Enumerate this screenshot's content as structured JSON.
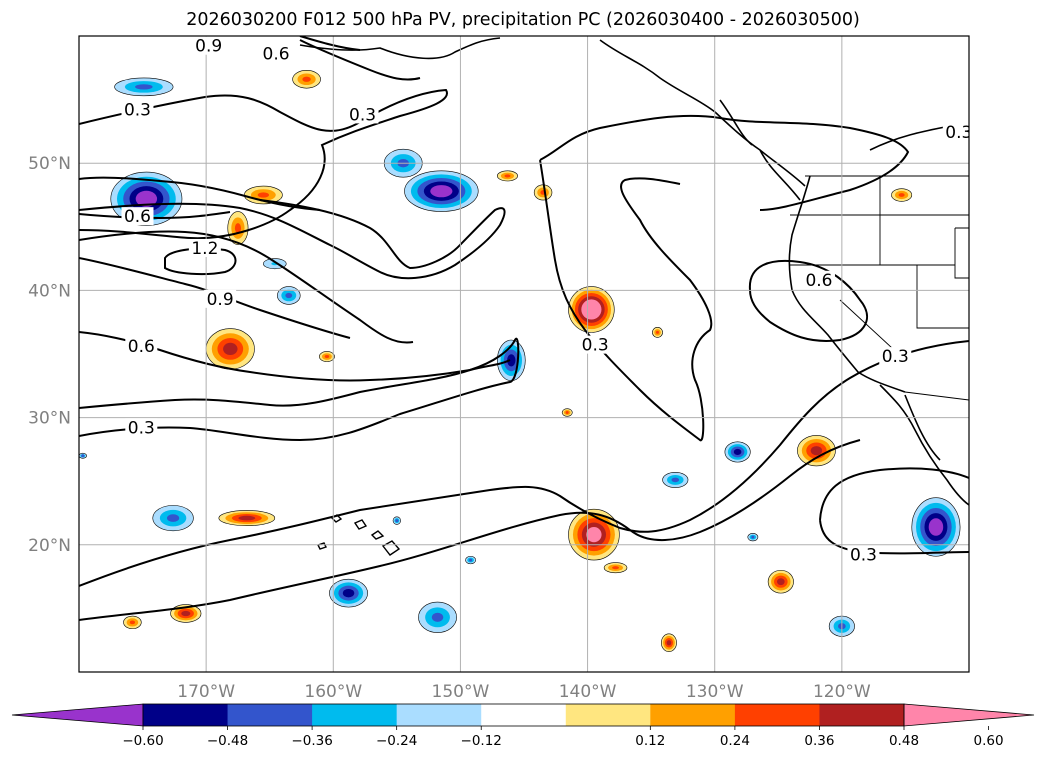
{
  "chart_data": {
    "type": "contour-map",
    "title": "2026030200 F012 500 hPa PV, precipitation PC (2026030400 - 2026030500)",
    "lon_range": [
      -180,
      -110
    ],
    "lat_range": [
      10,
      60
    ],
    "lon_ticks": [
      -170,
      -160,
      -150,
      -140,
      -130,
      -120
    ],
    "lon_tick_labels": [
      "170°W",
      "160°W",
      "150°W",
      "140°W",
      "130°W",
      "120°W"
    ],
    "lat_ticks": [
      20,
      30,
      40,
      50
    ],
    "lat_tick_labels": [
      "20°N",
      "30°N",
      "40°N",
      "50°N"
    ],
    "grid": true,
    "pv_contour_levels": [
      0.3,
      0.6,
      0.9,
      1.2
    ],
    "pv_contour_labels": [
      {
        "text": "0.9",
        "lon": -169.8,
        "lat": 59.0
      },
      {
        "text": "0.6",
        "lon": -164.5,
        "lat": 58.4
      },
      {
        "text": "0.3",
        "lon": -175.4,
        "lat": 54.0
      },
      {
        "text": "0.3",
        "lon": -157.7,
        "lat": 53.6
      },
      {
        "text": "0.6",
        "lon": -175.4,
        "lat": 45.6
      },
      {
        "text": "1.2",
        "lon": -170.1,
        "lat": 43.1
      },
      {
        "text": "0.9",
        "lon": -168.9,
        "lat": 39.1
      },
      {
        "text": "0.6",
        "lon": -175.1,
        "lat": 35.4
      },
      {
        "text": "0.3",
        "lon": -175.1,
        "lat": 29.0
      },
      {
        "text": "0.3",
        "lon": -139.4,
        "lat": 35.5
      },
      {
        "text": "0.6",
        "lon": -121.8,
        "lat": 40.6
      },
      {
        "text": "0.3",
        "lon": -115.8,
        "lat": 34.6
      },
      {
        "text": "0.3",
        "lon": -118.3,
        "lat": 19.0
      },
      {
        "text": "0.3",
        "lon": -110.8,
        "lat": 52.2
      }
    ],
    "colorbar": {
      "ticks": [
        -0.6,
        -0.48,
        -0.36,
        -0.24,
        -0.12,
        0.12,
        0.24,
        0.36,
        0.48,
        0.6
      ],
      "tick_labels": [
        "−0.60",
        "−0.48",
        "−0.36",
        "−0.24",
        "−0.12",
        "0.12",
        "0.24",
        "0.36",
        "0.48",
        "0.60"
      ],
      "colors": [
        "#9933cc",
        "#000088",
        "#3355cc",
        "#00bbee",
        "#aaddff",
        "#ffffff",
        "#ffe680",
        "#ffa000",
        "#ff4000",
        "#b02020",
        "#ff85aa"
      ],
      "extend": "both"
    },
    "precip_features": [
      {
        "kind": "neg",
        "lon": -174.9,
        "lat": 56.0,
        "rx": 2.3,
        "ry": 0.7,
        "level": 2
      },
      {
        "kind": "pos",
        "lon": -162.1,
        "lat": 56.6,
        "rx": 1.1,
        "ry": 0.7,
        "level": 2
      },
      {
        "kind": "neg",
        "lon": -174.7,
        "lat": 47.2,
        "rx": 2.8,
        "ry": 2.1,
        "level": 4
      },
      {
        "kind": "pos",
        "lon": -165.5,
        "lat": 47.5,
        "rx": 1.5,
        "ry": 0.7,
        "level": 2
      },
      {
        "kind": "pos",
        "lon": -167.5,
        "lat": 44.9,
        "rx": 0.8,
        "ry": 1.3,
        "level": 2
      },
      {
        "kind": "neg",
        "lon": -154.5,
        "lat": 50.0,
        "rx": 1.5,
        "ry": 1.1,
        "level": 2
      },
      {
        "kind": "neg",
        "lon": -151.5,
        "lat": 47.8,
        "rx": 2.9,
        "ry": 1.6,
        "level": 4
      },
      {
        "kind": "pos",
        "lon": -146.3,
        "lat": 49.0,
        "rx": 0.8,
        "ry": 0.4,
        "level": 2
      },
      {
        "kind": "pos",
        "lon": -143.5,
        "lat": 47.7,
        "rx": 0.7,
        "ry": 0.6,
        "level": 2
      },
      {
        "kind": "neg",
        "lon": -164.6,
        "lat": 42.1,
        "rx": 0.9,
        "ry": 0.4,
        "level": 1
      },
      {
        "kind": "neg",
        "lon": -163.5,
        "lat": 39.6,
        "rx": 0.9,
        "ry": 0.7,
        "level": 2
      },
      {
        "kind": "pos",
        "lon": -168.1,
        "lat": 35.4,
        "rx": 1.9,
        "ry": 1.6,
        "level": 3
      },
      {
        "kind": "pos",
        "lon": -160.5,
        "lat": 34.8,
        "rx": 0.6,
        "ry": 0.4,
        "level": 2
      },
      {
        "kind": "neg",
        "lon": -146.0,
        "lat": 34.5,
        "rx": 1.1,
        "ry": 1.6,
        "level": 3
      },
      {
        "kind": "pos",
        "lon": -139.7,
        "lat": 38.5,
        "rx": 1.8,
        "ry": 1.8,
        "level": 5
      },
      {
        "kind": "pos",
        "lon": -134.5,
        "lat": 36.7,
        "rx": 0.4,
        "ry": 0.4,
        "level": 2
      },
      {
        "kind": "pos",
        "lon": -141.6,
        "lat": 30.4,
        "rx": 0.4,
        "ry": 0.3,
        "level": 2
      },
      {
        "kind": "neg",
        "lon": -128.2,
        "lat": 27.3,
        "rx": 1.0,
        "ry": 0.8,
        "level": 3
      },
      {
        "kind": "pos",
        "lon": -122.0,
        "lat": 27.4,
        "rx": 1.5,
        "ry": 1.2,
        "level": 3
      },
      {
        "kind": "neg",
        "lon": -133.1,
        "lat": 25.1,
        "rx": 1.0,
        "ry": 0.6,
        "level": 2
      },
      {
        "kind": "neg",
        "lon": -112.6,
        "lat": 21.4,
        "rx": 1.9,
        "ry": 2.3,
        "level": 4
      },
      {
        "kind": "pos",
        "lon": -139.5,
        "lat": 20.8,
        "rx": 2.0,
        "ry": 2.0,
        "level": 4
      },
      {
        "kind": "pos",
        "lon": -124.8,
        "lat": 17.1,
        "rx": 1.0,
        "ry": 0.9,
        "level": 3
      },
      {
        "kind": "neg",
        "lon": -172.6,
        "lat": 22.1,
        "rx": 1.6,
        "ry": 1.0,
        "level": 2
      },
      {
        "kind": "pos",
        "lon": -166.8,
        "lat": 22.1,
        "rx": 2.2,
        "ry": 0.6,
        "level": 3
      },
      {
        "kind": "neg",
        "lon": -158.8,
        "lat": 16.2,
        "rx": 1.5,
        "ry": 1.1,
        "level": 3
      },
      {
        "kind": "neg",
        "lon": -151.8,
        "lat": 14.3,
        "rx": 1.5,
        "ry": 1.2,
        "level": 2
      },
      {
        "kind": "pos",
        "lon": -175.8,
        "lat": 13.9,
        "rx": 0.7,
        "ry": 0.5,
        "level": 2
      },
      {
        "kind": "pos",
        "lon": -171.6,
        "lat": 14.6,
        "rx": 1.2,
        "ry": 0.7,
        "level": 3
      },
      {
        "kind": "pos",
        "lon": -133.6,
        "lat": 12.3,
        "rx": 0.6,
        "ry": 0.7,
        "level": 3
      },
      {
        "kind": "neg",
        "lon": -120.0,
        "lat": 13.6,
        "rx": 1.0,
        "ry": 0.8,
        "level": 2
      },
      {
        "kind": "pos",
        "lon": -115.3,
        "lat": 47.5,
        "rx": 0.8,
        "ry": 0.5,
        "level": 2
      },
      {
        "kind": "pos",
        "lon": -137.8,
        "lat": 18.2,
        "rx": 0.9,
        "ry": 0.4,
        "level": 2
      },
      {
        "kind": "neg",
        "lon": -155.0,
        "lat": 21.9,
        "rx": 0.3,
        "ry": 0.3,
        "level": 2
      },
      {
        "kind": "neg",
        "lon": -149.2,
        "lat": 18.8,
        "rx": 0.4,
        "ry": 0.3,
        "level": 2
      },
      {
        "kind": "neg",
        "lon": -127.0,
        "lat": 20.6,
        "rx": 0.4,
        "ry": 0.3,
        "level": 2
      },
      {
        "kind": "neg",
        "lon": -179.7,
        "lat": 27.0,
        "rx": 0.3,
        "ry": 0.2,
        "level": 2
      }
    ]
  }
}
